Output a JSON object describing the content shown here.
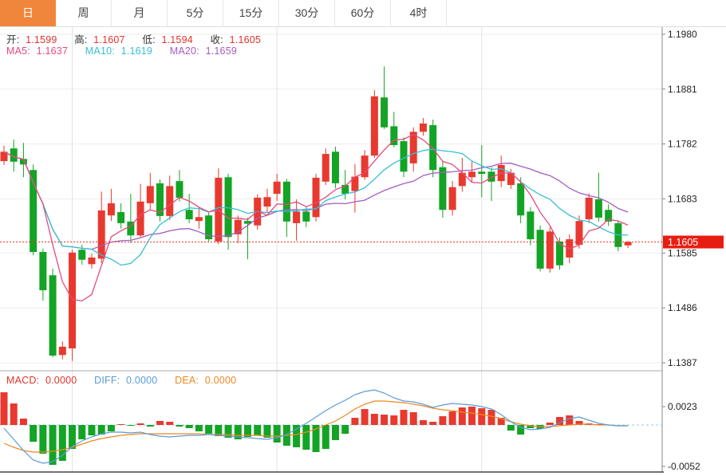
{
  "tabs": [
    {
      "label": "日",
      "active": true
    },
    {
      "label": "周",
      "active": false
    },
    {
      "label": "月",
      "active": false
    },
    {
      "label": "5分",
      "active": false
    },
    {
      "label": "15分",
      "active": false
    },
    {
      "label": "30分",
      "active": false
    },
    {
      "label": "60分",
      "active": false
    },
    {
      "label": "4时",
      "active": false
    }
  ],
  "quote": {
    "open_label": "开:",
    "open": "1.1599",
    "high_label": "高:",
    "high": "1.1607",
    "low_label": "低:",
    "low": "1.1594",
    "close_label": "收:",
    "close": "1.1605"
  },
  "ma_legend": {
    "ma5_label": "MA5:",
    "ma5": "1.1637",
    "ma10_label": "MA10:",
    "ma10": "1.1619",
    "ma20_label": "MA20:",
    "ma20": "1.1659"
  },
  "macd_legend": {
    "macd_label": "MACD:",
    "macd": "0.0000",
    "diff_label": "DIFF:",
    "diff": "0.0000",
    "dea_label": "DEA:",
    "dea": "0.0000"
  },
  "colors": {
    "up": "#e8392f",
    "down": "#13a425",
    "ma5": "#e8497c",
    "ma10": "#36bfd6",
    "ma20": "#a55cc0",
    "diff": "#5b9bd5",
    "dea": "#ee8822",
    "grid": "#ededed",
    "vgrid": "#e2e2e2",
    "axis": "#888888",
    "last_price_line": "#ee3524",
    "tag_bg": "#e81d12",
    "tag_text": "#ffffff",
    "zero_dash": "#93cfe0",
    "tick_text": "#222222",
    "separator": "#aaaaaa",
    "bottom_border": "#444444",
    "tab_active_bg": "#f0863c"
  },
  "chart_data": {
    "type": "candlestick+macd",
    "title": "",
    "price_axis_ticks": [
      "1.1980",
      "1.1881",
      "1.1782",
      "1.1683",
      "1.1585",
      "1.1486",
      "1.1387"
    ],
    "price_axis_range": [
      1.1387,
      1.198
    ],
    "last_price": 1.1605,
    "last_price_label": "1.1605",
    "grid": true,
    "legend_position": "top-left",
    "vertical_gridline_indices": [
      7,
      28,
      49
    ],
    "ma_periods": [
      5,
      10,
      20
    ],
    "candles_ohlc": [
      [
        1.1751,
        1.1779,
        1.1744,
        1.1768
      ],
      [
        1.1774,
        1.179,
        1.1732,
        1.175
      ],
      [
        1.1755,
        1.1784,
        1.1722,
        1.1745
      ],
      [
        1.1735,
        1.1745,
        1.1581,
        1.1587
      ],
      [
        1.1587,
        1.1593,
        1.1499,
        1.1518
      ],
      [
        1.1545,
        1.1557,
        1.1397,
        1.14
      ],
      [
        1.1401,
        1.1426,
        1.1393,
        1.1416
      ],
      [
        1.1413,
        1.1591,
        1.139,
        1.1586
      ],
      [
        1.1591,
        1.16,
        1.1564,
        1.1573
      ],
      [
        1.1565,
        1.1584,
        1.1557,
        1.1577
      ],
      [
        1.1575,
        1.1696,
        1.1567,
        1.1662
      ],
      [
        1.1653,
        1.1701,
        1.1643,
        1.1675
      ],
      [
        1.1659,
        1.1675,
        1.1629,
        1.1639
      ],
      [
        1.1642,
        1.1692,
        1.1603,
        1.1617
      ],
      [
        1.1617,
        1.171,
        1.1614,
        1.1678
      ],
      [
        1.1675,
        1.173,
        1.1663,
        1.1706
      ],
      [
        1.1711,
        1.1718,
        1.1642,
        1.1652
      ],
      [
        1.1652,
        1.1725,
        1.1645,
        1.1706
      ],
      [
        1.1715,
        1.1735,
        1.1678,
        1.1685
      ],
      [
        1.1663,
        1.1692,
        1.1639,
        1.1646
      ],
      [
        1.1643,
        1.1668,
        1.1629,
        1.165
      ],
      [
        1.1653,
        1.1658,
        1.1606,
        1.161
      ],
      [
        1.1606,
        1.1738,
        1.1601,
        1.1721
      ],
      [
        1.1722,
        1.1728,
        1.1591,
        1.1614
      ],
      [
        1.1619,
        1.1653,
        1.1603,
        1.1645
      ],
      [
        1.1643,
        1.1649,
        1.1574,
        1.1638
      ],
      [
        1.1635,
        1.1691,
        1.1627,
        1.1685
      ],
      [
        1.1669,
        1.1701,
        1.1658,
        1.1686
      ],
      [
        1.1692,
        1.1728,
        1.1679,
        1.1714
      ],
      [
        1.1714,
        1.1719,
        1.1614,
        1.1642
      ],
      [
        1.1639,
        1.1682,
        1.1607,
        1.166
      ],
      [
        1.166,
        1.1668,
        1.1632,
        1.1642
      ],
      [
        1.165,
        1.1728,
        1.1642,
        1.1721
      ],
      [
        1.1714,
        1.1774,
        1.1708,
        1.1764
      ],
      [
        1.1768,
        1.1777,
        1.1702,
        1.1711
      ],
      [
        1.1708,
        1.1735,
        1.1682,
        1.1692
      ],
      [
        1.1697,
        1.1746,
        1.1658,
        1.1723
      ],
      [
        1.1722,
        1.1771,
        1.1717,
        1.1761
      ],
      [
        1.1761,
        1.1879,
        1.1757,
        1.1868
      ],
      [
        1.1866,
        1.1922,
        1.1809,
        1.1812
      ],
      [
        1.1814,
        1.184,
        1.1776,
        1.178
      ],
      [
        1.1787,
        1.1794,
        1.1722,
        1.1732
      ],
      [
        1.1747,
        1.1812,
        1.1732,
        1.1804
      ],
      [
        1.1804,
        1.1829,
        1.1797,
        1.1819
      ],
      [
        1.1816,
        1.1826,
        1.1722,
        1.1735
      ],
      [
        1.174,
        1.1751,
        1.1649,
        1.1663
      ],
      [
        1.1663,
        1.1715,
        1.1653,
        1.1704
      ],
      [
        1.1706,
        1.1757,
        1.1696,
        1.173
      ],
      [
        1.1722,
        1.175,
        1.1714,
        1.1732
      ],
      [
        1.1732,
        1.178,
        1.1686,
        1.1728
      ],
      [
        1.1732,
        1.174,
        1.1679,
        1.1714
      ],
      [
        1.1715,
        1.1761,
        1.1704,
        1.1744
      ],
      [
        1.1708,
        1.1737,
        1.1701,
        1.173
      ],
      [
        1.1711,
        1.1722,
        1.1639,
        1.1653
      ],
      [
        1.166,
        1.1668,
        1.1599,
        1.161
      ],
      [
        1.1627,
        1.1635,
        1.1552,
        1.1557
      ],
      [
        1.1557,
        1.1632,
        1.155,
        1.1624
      ],
      [
        1.1606,
        1.1613,
        1.1555,
        1.1563
      ],
      [
        1.1577,
        1.1619,
        1.1567,
        1.161
      ],
      [
        1.16,
        1.1653,
        1.1593,
        1.1643
      ],
      [
        1.1646,
        1.1693,
        1.1639,
        1.1685
      ],
      [
        1.1682,
        1.173,
        1.1642,
        1.1649
      ],
      [
        1.1663,
        1.1673,
        1.1634,
        1.1642
      ],
      [
        1.1639,
        1.1644,
        1.1588,
        1.1596
      ],
      [
        1.1599,
        1.1607,
        1.1594,
        1.1605
      ]
    ],
    "macd": {
      "axis_ticks": [
        "0.0023",
        "-0.0052"
      ],
      "ylim": [
        -0.0052,
        0.0023
      ],
      "hist": [
        0.0041,
        0.0027,
        0.0008,
        -0.0021,
        -0.0036,
        -0.005,
        -0.0045,
        -0.003,
        -0.0018,
        -0.0013,
        -0.0012,
        -0.0008,
        0.0001,
        -0.0001,
        0.0002,
        -0.0002,
        0.0005,
        0.0004,
        -0.0002,
        -0.0004,
        -0.0008,
        -0.0011,
        -0.0014,
        -0.0016,
        -0.0018,
        -0.0015,
        -0.0013,
        -0.0016,
        -0.0022,
        -0.0026,
        -0.0028,
        -0.0031,
        -0.0034,
        -0.003,
        -0.0019,
        -0.0011,
        0.0009,
        0.002,
        0.0014,
        0.0013,
        0.0012,
        0.0019,
        0.0016,
        0.0006,
        0.0004,
        0.0011,
        0.0017,
        0.0022,
        0.0023,
        0.0021,
        0.0019,
        0.0009,
        -0.0007,
        -0.0012,
        -0.0004,
        -0.0005,
        0.0003,
        0.001,
        0.0012,
        0.0005,
        0.0002,
        0.0001,
        0.0,
        0.0,
        0.0
      ],
      "diff": [
        -0.0004,
        -0.0018,
        -0.0032,
        -0.0044,
        -0.0048,
        -0.0046,
        -0.0038,
        -0.0027,
        -0.002,
        -0.0015,
        -0.0011,
        -0.0009,
        -0.0009,
        -0.001,
        -0.0009,
        -0.0012,
        -0.0014,
        -0.0015,
        -0.0014,
        -0.0013,
        -0.0013,
        -0.0012,
        -0.0013,
        -0.0014,
        -0.0015,
        -0.0016,
        -0.0017,
        -0.0018,
        -0.0016,
        -0.0012,
        -0.0005,
        0.0002,
        0.001,
        0.0018,
        0.0025,
        0.0031,
        0.0038,
        0.0042,
        0.0044,
        0.004,
        0.0034,
        0.003,
        0.0029,
        0.0026,
        0.0022,
        0.0025,
        0.0027,
        0.0026,
        0.0025,
        0.0023,
        0.002,
        0.0013,
        0.0004,
        -0.0003,
        -0.0006,
        -0.0005,
        -0.0003,
        0.0003,
        0.0008,
        0.001,
        0.0006,
        0.0002,
        0.0,
        -0.0001,
        -0.0001
      ],
      "dea": [
        -0.0023,
        -0.0028,
        -0.0032,
        -0.0034,
        -0.0034,
        -0.0033,
        -0.0031,
        -0.0028,
        -0.0024,
        -0.002,
        -0.0017,
        -0.0015,
        -0.0013,
        -0.0012,
        -0.0011,
        -0.0011,
        -0.0011,
        -0.0011,
        -0.0011,
        -0.0011,
        -0.0011,
        -0.0012,
        -0.0012,
        -0.0012,
        -0.0013,
        -0.0013,
        -0.0013,
        -0.0014,
        -0.0014,
        -0.0013,
        -0.0012,
        -0.0009,
        -0.0005,
        0.0,
        0.0005,
        0.0012,
        0.002,
        0.0026,
        0.003,
        0.003,
        0.0029,
        0.0028,
        0.0026,
        0.0024,
        0.0021,
        0.0019,
        0.0018,
        0.0016,
        0.0015,
        0.0013,
        0.0011,
        0.0008,
        0.0004,
        0.0001,
        -0.0001,
        -0.0002,
        -0.0002,
        -0.0001,
        0.0,
        0.0001,
        0.0001,
        0.0,
        0.0,
        -0.0001,
        -0.0001
      ]
    }
  }
}
